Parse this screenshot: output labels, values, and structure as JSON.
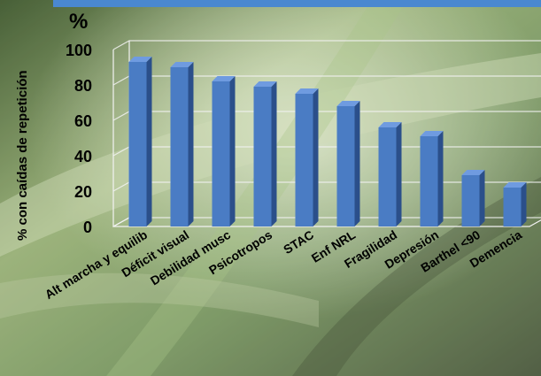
{
  "chart_data": {
    "type": "bar",
    "title": "%",
    "ylabel": "% con caídas de repetición",
    "xlabel": "",
    "categories": [
      "Alt marcha y equilib",
      "Déficit visual",
      "Debilidad musc",
      "Psicotropos",
      "STAC",
      "Enf NRL",
      "Fragilidad",
      "Depresión",
      "Barthel <90",
      "Demencia"
    ],
    "values": [
      93,
      90,
      82,
      79,
      75,
      68,
      56,
      51,
      29,
      22
    ],
    "ylim": [
      0,
      100
    ],
    "yticks": [
      0,
      20,
      40,
      60,
      80,
      100
    ],
    "grid": true,
    "legend": "none",
    "three_d": true,
    "colors": {
      "bar_front": "#4a7cc4",
      "bar_side": "#2b4f8a",
      "bar_top": "#6f9be0",
      "band": "#4a88d0"
    }
  }
}
